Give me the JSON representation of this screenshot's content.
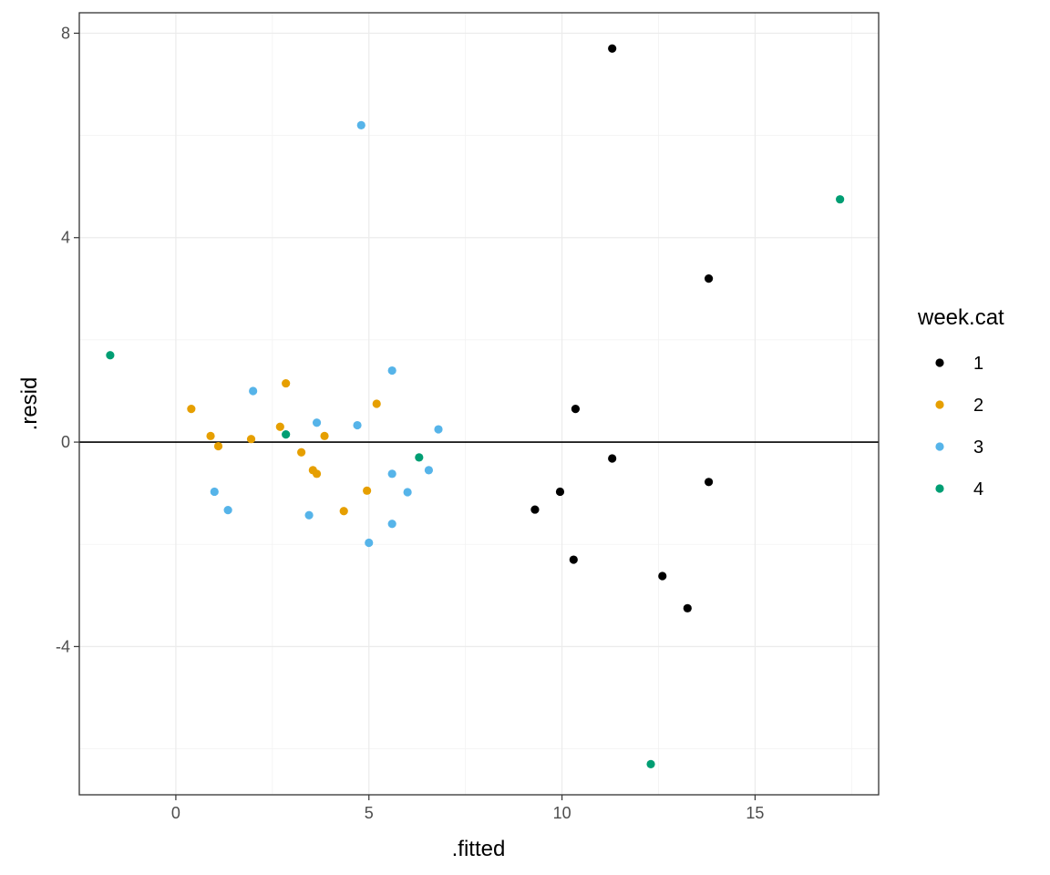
{
  "chart_data": {
    "type": "scatter",
    "title": "",
    "xlabel": ".fitted",
    "ylabel": ".resid",
    "xlim": [
      -2.5,
      18.2
    ],
    "ylim": [
      -6.9,
      8.4
    ],
    "x_ticks": [
      0,
      5,
      10,
      15
    ],
    "x_tick_labels": [
      "0",
      "5",
      "10",
      "15"
    ],
    "y_ticks": [
      -4,
      0,
      4,
      8
    ],
    "y_tick_labels": [
      "-4",
      "0",
      "4",
      "8"
    ],
    "grid": true,
    "hline": 0,
    "legend": {
      "title": "week.cat",
      "position": "right"
    },
    "series": [
      {
        "name": "1",
        "color": "#000000",
        "points": [
          [
            11.3,
            7.7
          ],
          [
            13.8,
            3.2
          ],
          [
            10.35,
            0.65
          ],
          [
            11.3,
            -0.32
          ],
          [
            13.8,
            -0.78
          ],
          [
            9.95,
            -0.97
          ],
          [
            9.3,
            -1.32
          ],
          [
            10.3,
            -2.3
          ],
          [
            12.6,
            -2.62
          ],
          [
            13.25,
            -3.25
          ]
        ]
      },
      {
        "name": "2",
        "color": "#E69F00",
        "points": [
          [
            0.4,
            0.65
          ],
          [
            2.85,
            1.15
          ],
          [
            5.2,
            0.75
          ],
          [
            0.9,
            0.12
          ],
          [
            1.1,
            -0.08
          ],
          [
            1.95,
            0.06
          ],
          [
            2.7,
            0.3
          ],
          [
            3.85,
            0.12
          ],
          [
            3.25,
            -0.2
          ],
          [
            3.55,
            -0.55
          ],
          [
            3.65,
            -0.62
          ],
          [
            4.95,
            -0.95
          ],
          [
            4.35,
            -1.35
          ]
        ]
      },
      {
        "name": "3",
        "color": "#56B4E9",
        "points": [
          [
            4.8,
            6.2
          ],
          [
            5.6,
            1.4
          ],
          [
            2.0,
            1.0
          ],
          [
            3.65,
            0.38
          ],
          [
            4.7,
            0.33
          ],
          [
            6.8,
            0.25
          ],
          [
            5.6,
            -0.62
          ],
          [
            6.55,
            -0.55
          ],
          [
            1.0,
            -0.97
          ],
          [
            6.0,
            -0.98
          ],
          [
            1.35,
            -1.33
          ],
          [
            3.45,
            -1.43
          ],
          [
            5.6,
            -1.6
          ],
          [
            5.0,
            -1.97
          ]
        ]
      },
      {
        "name": "4",
        "color": "#009E73",
        "points": [
          [
            17.2,
            4.75
          ],
          [
            -1.7,
            1.7
          ],
          [
            2.85,
            0.15
          ],
          [
            6.3,
            -0.3
          ],
          [
            12.3,
            -6.3
          ]
        ]
      }
    ]
  }
}
